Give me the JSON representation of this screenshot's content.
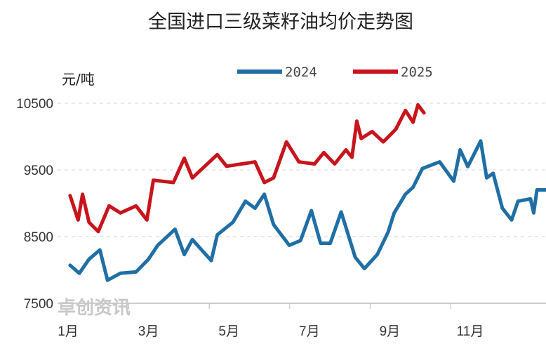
{
  "chart_data": {
    "type": "line",
    "title": "全国进口三级菜籽油均价走势图",
    "ylabel": "元/吨",
    "xlabel": "",
    "ylim": [
      7500,
      10500
    ],
    "yticks": [
      "10500",
      "9500",
      "8500",
      "7500"
    ],
    "ytick_values": [
      10500,
      9500,
      8500,
      7500
    ],
    "xlim": [
      1,
      12.95
    ],
    "xticks": [
      "1月",
      "3月",
      "5月",
      "7月",
      "9月",
      "11月"
    ],
    "xtick_values": [
      1,
      3,
      5,
      7,
      9,
      11
    ],
    "grid": true,
    "legend_position": "top",
    "watermark": "卓创资讯",
    "series": [
      {
        "name": "2024",
        "color": "#1f6fa5",
        "x": [
          1.05,
          1.28,
          1.52,
          1.79,
          1.98,
          2.3,
          2.69,
          3.0,
          3.23,
          3.66,
          3.89,
          4.09,
          4.56,
          4.71,
          5.1,
          5.41,
          5.65,
          5.88,
          6.11,
          6.5,
          6.78,
          7.05,
          7.28,
          7.52,
          7.79,
          8.14,
          8.37,
          8.69,
          8.96,
          9.11,
          9.39,
          9.58,
          9.81,
          10.24,
          10.59,
          10.75,
          10.94,
          11.26,
          11.41,
          11.57,
          11.8,
          12.03,
          12.19,
          12.5,
          12.58,
          12.66,
          12.93
        ],
        "y": [
          8070,
          7950,
          8160,
          8300,
          7845,
          7950,
          7970,
          8160,
          8370,
          8610,
          8230,
          8455,
          8140,
          8525,
          8715,
          9030,
          8925,
          9135,
          8680,
          8370,
          8440,
          8890,
          8400,
          8400,
          8870,
          8190,
          8020,
          8230,
          8570,
          8855,
          9135,
          9240,
          9520,
          9620,
          9330,
          9800,
          9550,
          9935,
          9380,
          9450,
          8925,
          8750,
          9030,
          9065,
          8855,
          9200,
          9200
        ]
      },
      {
        "name": "2025",
        "color": "#c8141c",
        "x": [
          1.05,
          1.25,
          1.36,
          1.52,
          1.75,
          2.02,
          2.3,
          2.69,
          2.96,
          3.12,
          3.62,
          3.89,
          4.09,
          4.71,
          4.94,
          5.65,
          5.88,
          6.11,
          6.43,
          6.74,
          7.13,
          7.36,
          7.63,
          7.91,
          8.06,
          8.18,
          8.29,
          8.56,
          8.84,
          9.15,
          9.39,
          9.58,
          9.7,
          9.85
        ],
        "y": [
          9115,
          8750,
          9135,
          8715,
          8575,
          8960,
          8855,
          8960,
          8750,
          9345,
          9310,
          9675,
          9380,
          9730,
          9555,
          9620,
          9310,
          9380,
          9920,
          9620,
          9590,
          9760,
          9590,
          9800,
          9690,
          10230,
          9970,
          10075,
          9920,
          10110,
          10390,
          10215,
          10475,
          10355
        ]
      }
    ]
  }
}
